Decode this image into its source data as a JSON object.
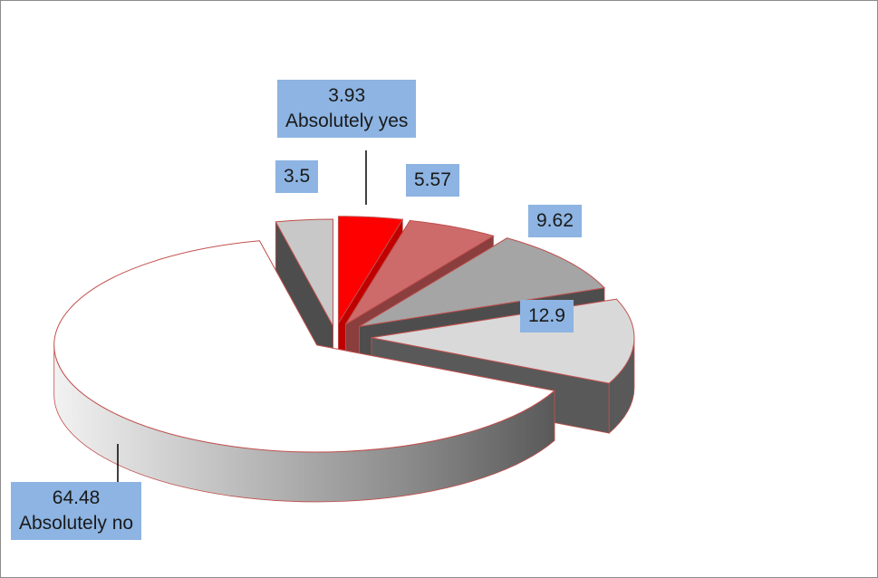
{
  "chart_data": {
    "type": "pie",
    "title": "",
    "style": "3d-exploded",
    "slices": [
      {
        "value": 3.93,
        "label": "Absolutely yes",
        "color": "#ff0000",
        "side_color": "#c00000"
      },
      {
        "value": 5.57,
        "label": "",
        "color": "#cd6b6b",
        "side_color": "#8a3e3e"
      },
      {
        "value": 9.62,
        "label": "",
        "color": "#a5a5a5",
        "side_color": "#4d4d4d"
      },
      {
        "value": 12.9,
        "label": "",
        "color": "#d9d9d9",
        "side_color": "#595959"
      },
      {
        "value": 64.48,
        "label": "Absolutely no",
        "color": "#ffffff",
        "side_color": "#7f7f7f"
      },
      {
        "value": 3.5,
        "label": "",
        "color": "#c8c8c8",
        "side_color": "#4d4d4d"
      }
    ],
    "label_background": "#8db4e2",
    "slice_border": "#c0504d"
  }
}
